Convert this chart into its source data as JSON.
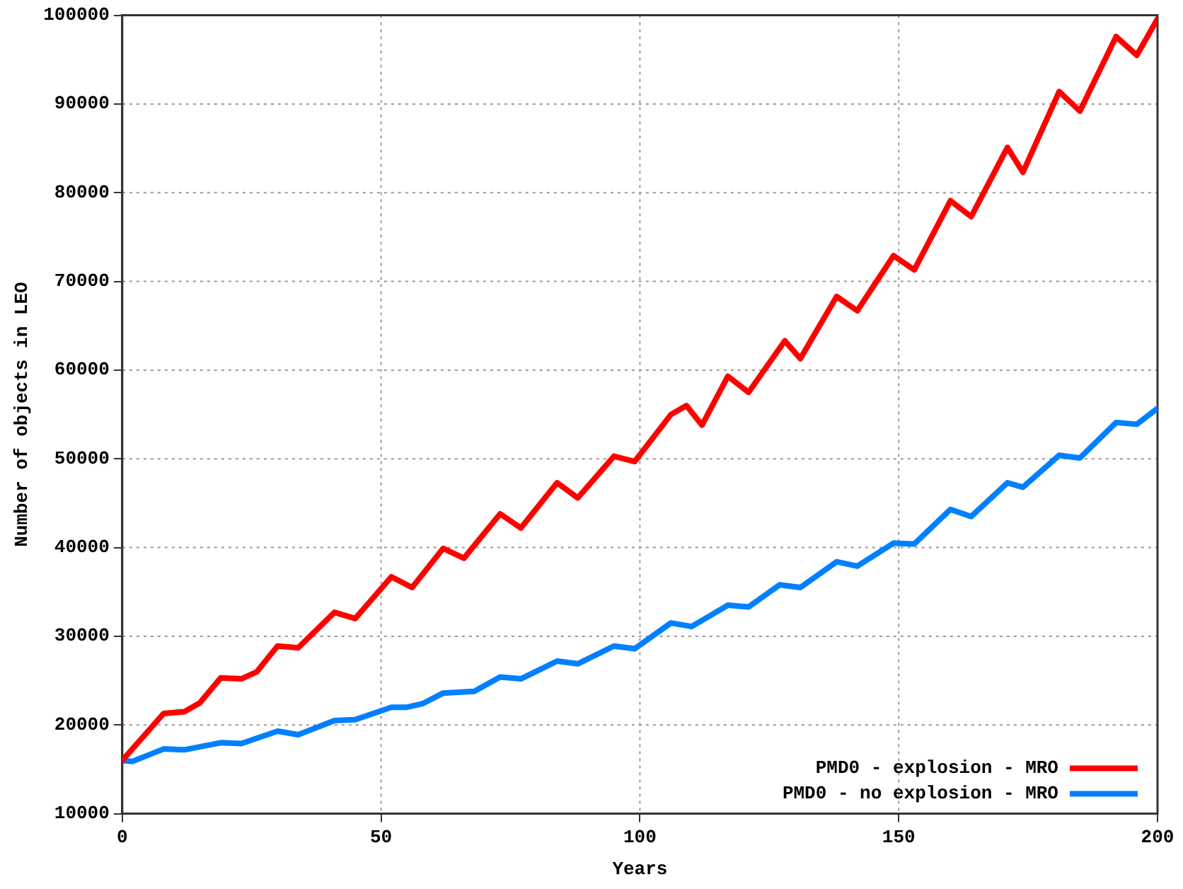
{
  "chart_data": {
    "type": "line",
    "xlabel": "Years",
    "ylabel": "Number of objects in LEO",
    "xlim": [
      0,
      200
    ],
    "xticks": [
      0,
      50,
      100,
      150,
      200
    ],
    "ylim": [
      10000,
      100000
    ],
    "yticks": [
      10000,
      20000,
      30000,
      40000,
      50000,
      60000,
      70000,
      80000,
      90000,
      100000
    ],
    "grid": true,
    "legend": "bottom right",
    "marker": "none",
    "line_style": "solid",
    "series": [
      {
        "name": "PMD0 - explosion - MRO",
        "color": "#ff0000",
        "x": [
          0,
          8,
          12,
          15,
          19,
          23,
          26,
          30,
          34,
          41,
          45,
          52,
          56,
          62,
          66,
          73,
          77,
          84,
          88,
          95,
          99,
          106,
          109,
          112,
          117,
          121,
          128,
          131,
          138,
          142,
          149,
          153,
          160,
          164,
          171,
          174,
          181,
          185,
          192,
          196,
          200
        ],
        "values": [
          16000,
          21300,
          21500,
          22500,
          25300,
          25200,
          26000,
          28900,
          28700,
          32700,
          32000,
          36700,
          35500,
          39900,
          38800,
          43800,
          42200,
          47300,
          45600,
          50300,
          49700,
          55000,
          56000,
          53800,
          59300,
          57500,
          63300,
          61300,
          68300,
          66700,
          72900,
          71300,
          79100,
          77300,
          85100,
          82300,
          91400,
          89200,
          97600,
          95500,
          99600
        ]
      },
      {
        "name": "PMD0 - no explosion - MRO",
        "color": "#0080ff",
        "x": [
          0,
          2,
          8,
          12,
          19,
          23,
          30,
          34,
          41,
          45,
          52,
          55,
          58,
          62,
          68,
          73,
          77,
          84,
          88,
          95,
          99,
          106,
          110,
          117,
          121,
          127,
          131,
          138,
          142,
          149,
          153,
          160,
          164,
          171,
          174,
          181,
          185,
          192,
          196,
          200
        ],
        "values": [
          16000,
          15900,
          17300,
          17200,
          18000,
          17900,
          19300,
          18900,
          20500,
          20600,
          22000,
          22000,
          22400,
          23600,
          23800,
          25400,
          25200,
          27200,
          26900,
          28900,
          28600,
          31500,
          31100,
          33500,
          33300,
          35800,
          35500,
          38400,
          37900,
          40500,
          40400,
          44300,
          43500,
          47300,
          46800,
          50400,
          50100,
          54100,
          53900,
          55700
        ]
      }
    ]
  }
}
